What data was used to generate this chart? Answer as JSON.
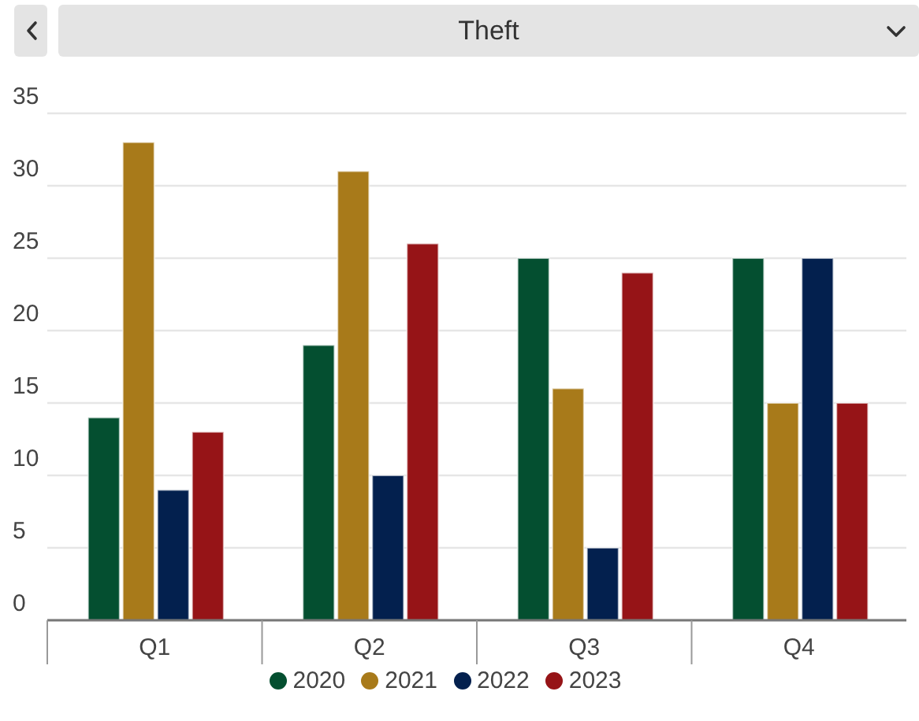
{
  "chart_data": {
    "type": "bar",
    "title": "Theft",
    "categories": [
      "Q1",
      "Q2",
      "Q3",
      "Q4"
    ],
    "series": [
      {
        "name": "2020",
        "color": "#044f30",
        "values": [
          14,
          19,
          25,
          25
        ]
      },
      {
        "name": "2021",
        "color": "#a87a1a",
        "values": [
          33,
          31,
          16,
          15
        ]
      },
      {
        "name": "2022",
        "color": "#03204e",
        "values": [
          9,
          10,
          5,
          25
        ]
      },
      {
        "name": "2023",
        "color": "#961417",
        "values": [
          13,
          26,
          24,
          15
        ]
      }
    ],
    "ylim": [
      0,
      35
    ],
    "yticks": [
      0,
      5,
      10,
      15,
      20,
      25,
      30,
      35
    ],
    "grid": "y",
    "legend": "bottom"
  }
}
